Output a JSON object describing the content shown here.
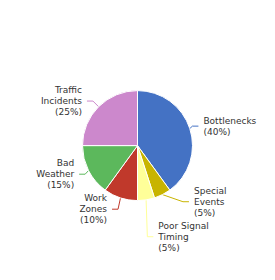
{
  "chart_data": {
    "type": "pie",
    "categories": [
      "Bottlenecks\n(40%)",
      "Special\nEvents\n(5%)",
      "Poor Signal\nTiming\n(5%)",
      "Work\nZones\n(10%)",
      "Bad\nWeather\n(15%)",
      "Traffic\nIncidents\n(25%)"
    ],
    "values": [
      40,
      5,
      5,
      10,
      15,
      25
    ],
    "colors": [
      "#4472C4",
      "#C8B400",
      "#FFFF99",
      "#C0392B",
      "#5CB85C",
      "#CC88CC"
    ]
  }
}
